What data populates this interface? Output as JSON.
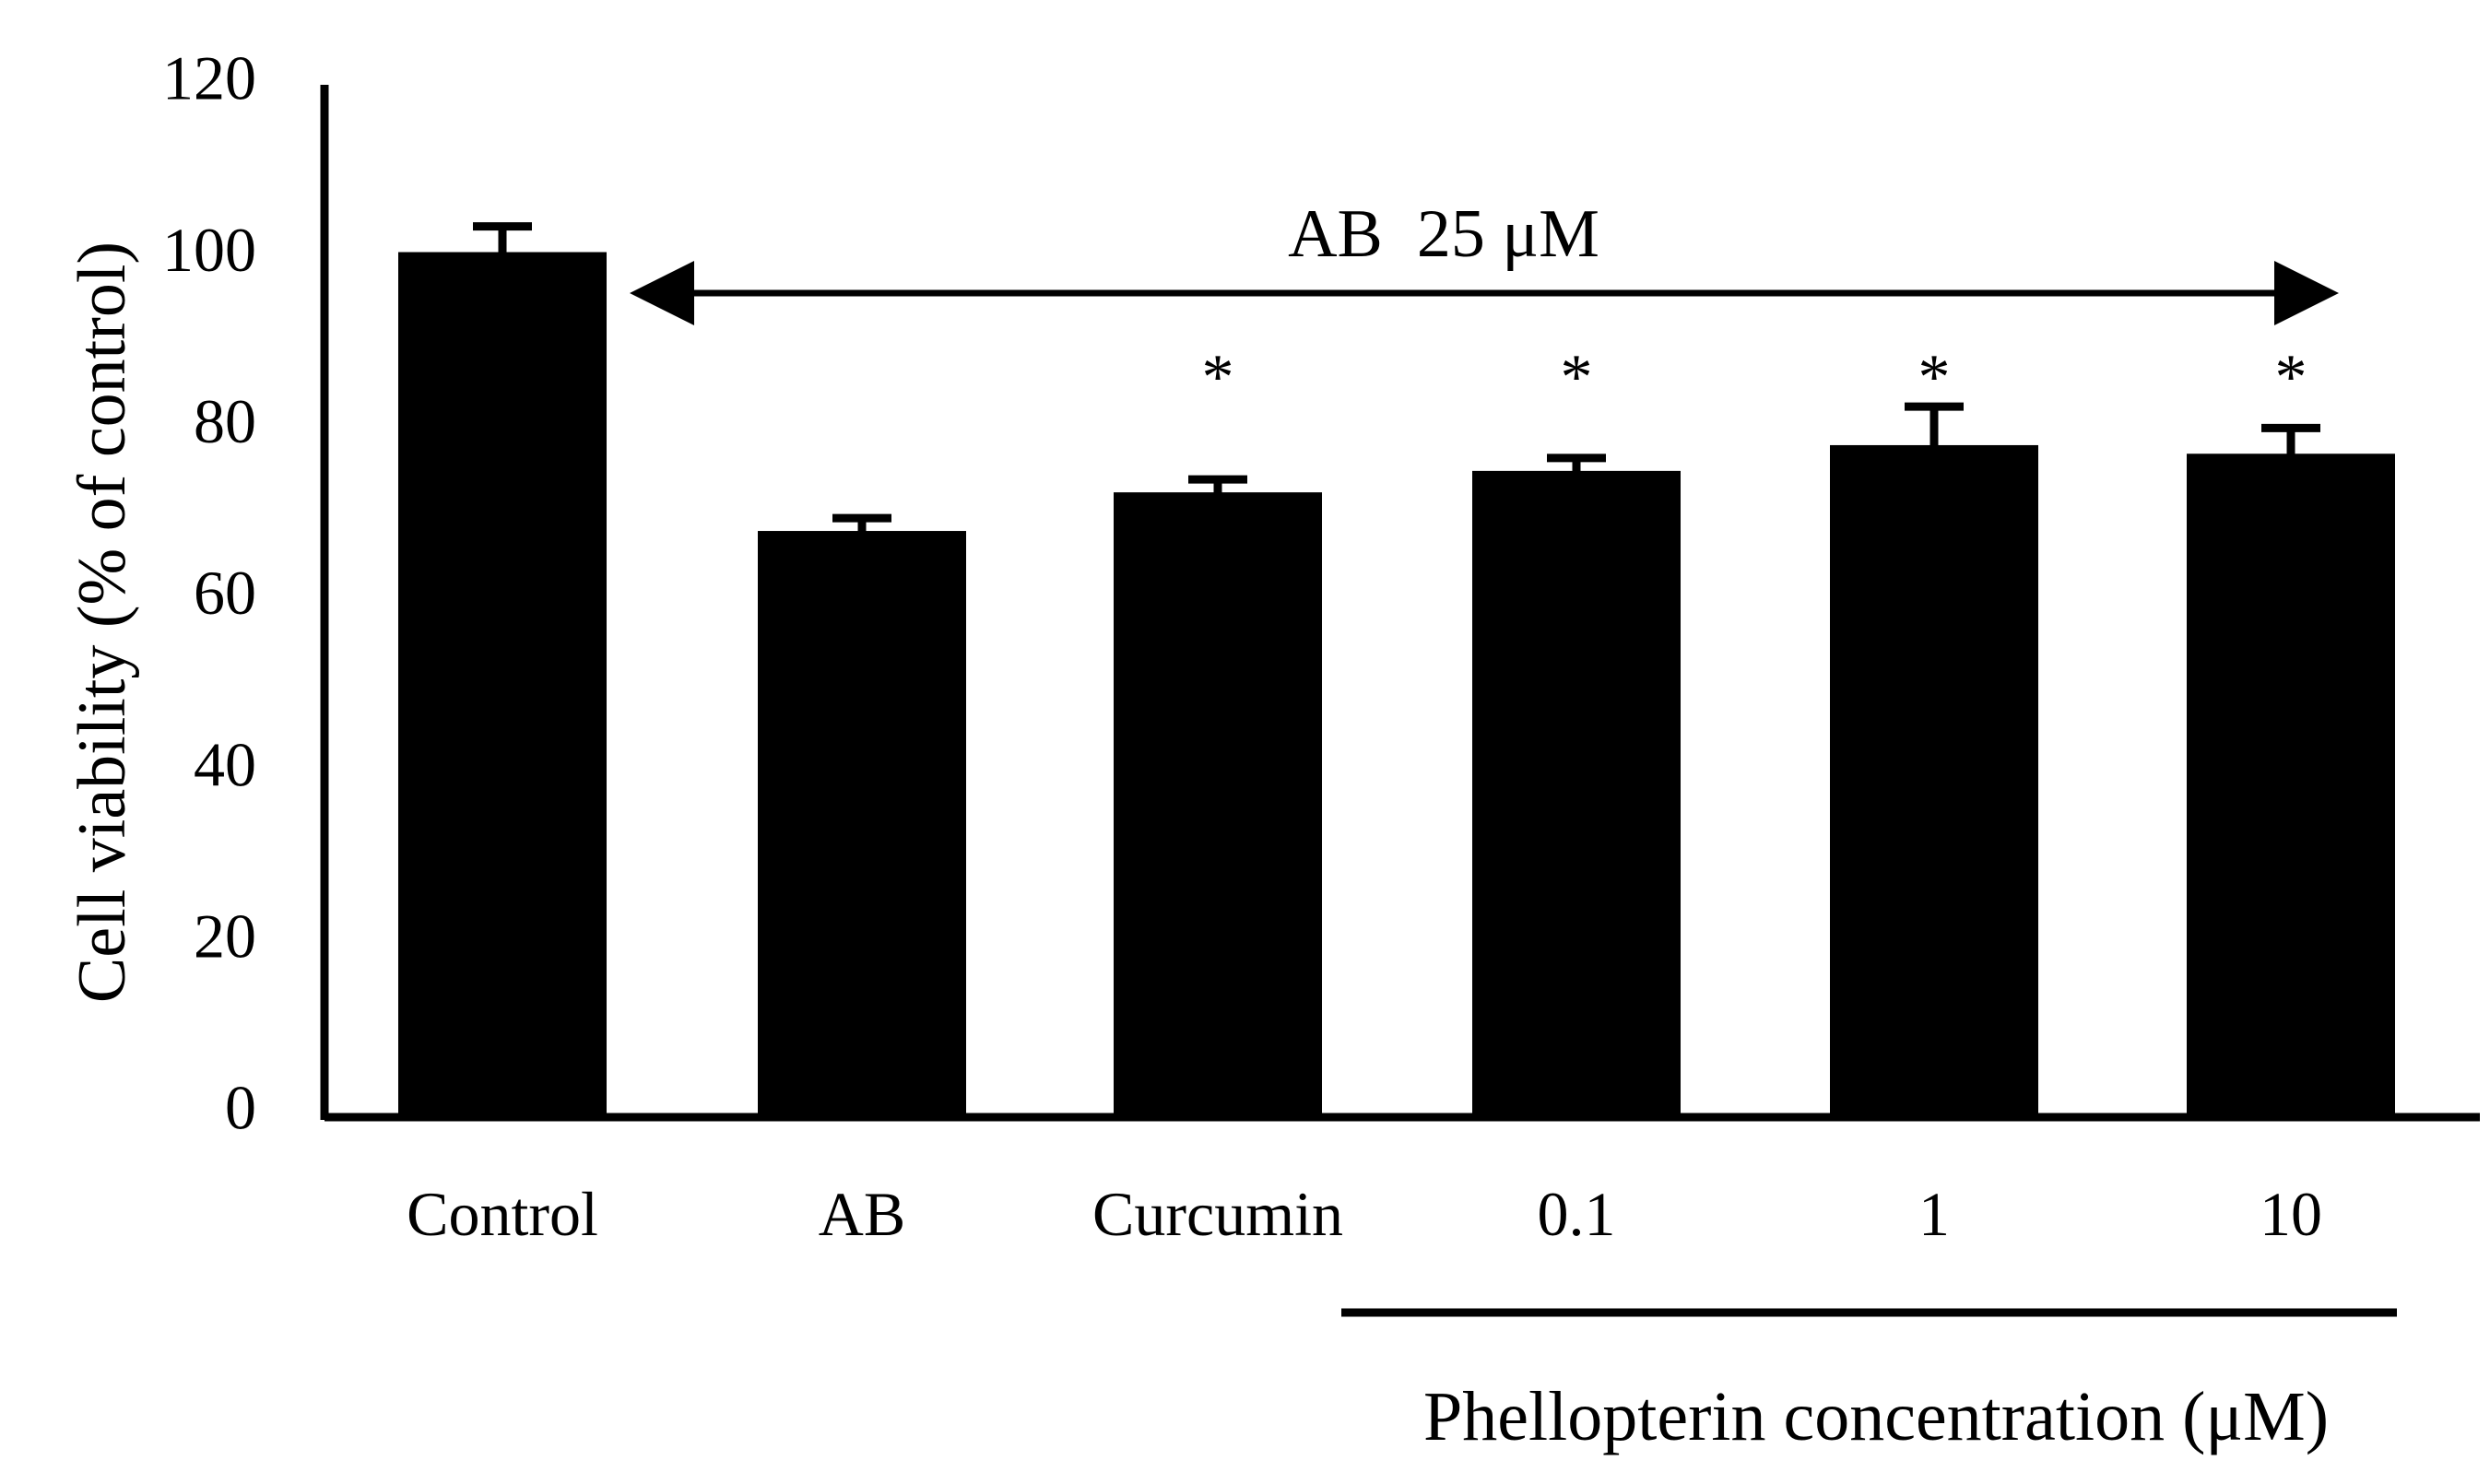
{
  "chart_data": {
    "type": "bar",
    "categories": [
      "Control",
      "AB",
      "Curcumin",
      "0.1",
      "1",
      "10"
    ],
    "values": [
      100.5,
      68,
      72.5,
      75,
      78,
      77
    ],
    "errors": [
      3,
      1.5,
      1.5,
      1.5,
      4.5,
      3
    ],
    "significance": [
      "",
      "",
      "*",
      "*",
      "*",
      "*"
    ],
    "ylabel": "Cell viability (% of control)",
    "ylim": [
      0,
      120
    ],
    "yticks": [
      "0",
      "20",
      "40",
      "60",
      "80",
      "100",
      "120"
    ],
    "annotation": "AB  25 μM",
    "group_label": "Phellopterin concentration (μM)",
    "grid": false,
    "bar_color": "#000000"
  }
}
